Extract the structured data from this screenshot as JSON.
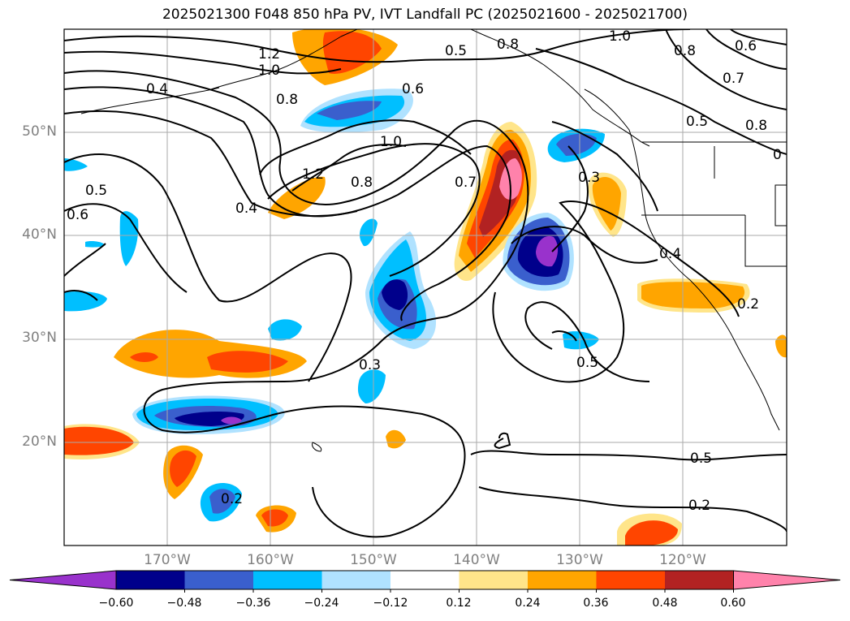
{
  "title": "2025021300 F048 850 hPa PV, IVT Landfall PC (2025021600 - 2025021700)",
  "lat_labels": [
    "50°N",
    "40°N",
    "30°N",
    "20°N"
  ],
  "lon_labels": [
    "170°W",
    "160°W",
    "150°W",
    "140°W",
    "130°W",
    "120°W"
  ],
  "colorbar": {
    "ticks": [
      "−0.60",
      "−0.48",
      "−0.36",
      "−0.24",
      "−0.12",
      "0.12",
      "0.24",
      "0.36",
      "0.48",
      "0.60"
    ],
    "colors": [
      "#9932cc",
      "#00008b",
      "#3a5fcd",
      "#00bfff",
      "#b0e2ff",
      "#ffffff",
      "#ffe58a",
      "#ffa500",
      "#ff4500",
      "#b22222",
      "#ff82ab"
    ],
    "extend": "both"
  },
  "contour_labels": [
    "1.2",
    "1.0",
    "0.8",
    "0.4",
    "0.5",
    "0.6",
    "1.0",
    "0.8",
    "0.6",
    "0.7",
    "0.5",
    "0.8",
    "1.2",
    "0.8",
    "0.4",
    "1.0",
    "0.7",
    "0.3",
    "0.4",
    "0.3",
    "0.5",
    "0.5",
    "0.2",
    "0.2",
    "0.6",
    "0.5",
    "0.2",
    "1.0",
    "0.6",
    "0.8",
    "0.7",
    "0.5",
    "0.8",
    "0.8",
    "0"
  ],
  "map": {
    "projection": "PlateCarree",
    "extent": {
      "lon_min": -180,
      "lon_max": -110,
      "lat_min": 10,
      "lat_max": 60
    },
    "gridlines": true,
    "shaded_field": "IVT Landfall PC",
    "contour_field": "850 hPa PV"
  }
}
